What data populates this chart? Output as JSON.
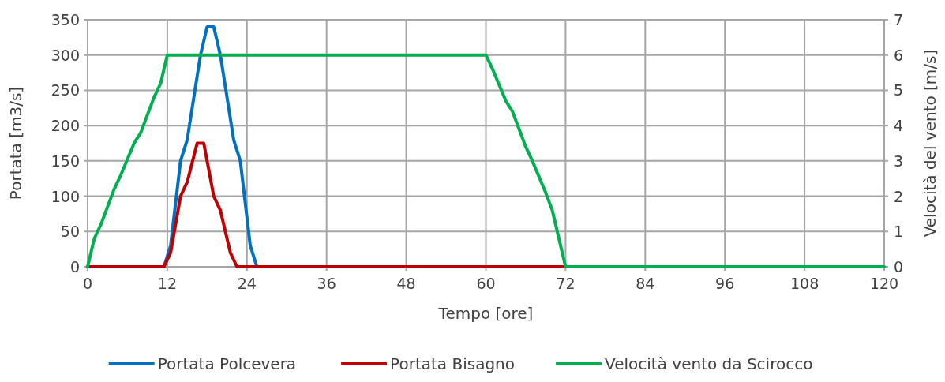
{
  "chart_data": {
    "type": "line",
    "xlabel": "Tempo [ore]",
    "ylabel": "Portata [m3/s]",
    "y2label": "Velocità del vento [m/s]",
    "xlim": [
      0,
      120
    ],
    "xticks": [
      0,
      12,
      24,
      36,
      48,
      60,
      72,
      84,
      96,
      108,
      120
    ],
    "ylim": [
      0,
      350
    ],
    "yticks": [
      0,
      50,
      100,
      150,
      200,
      250,
      300,
      350
    ],
    "y2lim": [
      0,
      7
    ],
    "y2ticks": [
      0,
      1,
      2,
      3,
      4,
      5,
      6,
      7
    ],
    "grid": true,
    "legend": "bottom",
    "marker": "none",
    "line_style": "solid",
    "series": [
      {
        "name": "Portata Polcevera",
        "color": "#0070c0",
        "x": [
          0,
          11.5,
          12.5,
          14,
          15,
          17,
          18,
          19,
          20,
          22,
          23,
          24.5,
          25.5
        ],
        "values": [
          0,
          0,
          30,
          150,
          180,
          300,
          340,
          340,
          300,
          180,
          150,
          30,
          0
        ]
      },
      {
        "name": "Portata Bisagno",
        "color": "#c00000",
        "x": [
          0,
          11.5,
          12.5,
          14,
          15,
          16.5,
          17.5,
          19,
          20,
          21.5,
          22.5,
          72
        ],
        "values": [
          0,
          0,
          20,
          100,
          120,
          175,
          175,
          100,
          80,
          20,
          0,
          0
        ]
      },
      {
        "name": "Velocità vento da Scirocco",
        "color": "#00b050",
        "axis": "y2",
        "x": [
          0,
          1,
          2,
          4,
          5,
          7,
          8,
          10,
          11,
          12,
          60,
          61,
          63,
          64,
          66,
          67,
          69,
          70,
          71,
          72,
          120
        ],
        "values": [
          0,
          0.8,
          1.2,
          2.2,
          2.6,
          3.5,
          3.8,
          4.8,
          5.2,
          6,
          6,
          5.6,
          4.7,
          4.4,
          3.4,
          3.0,
          2.1,
          1.6,
          0.8,
          0,
          0
        ]
      }
    ]
  }
}
